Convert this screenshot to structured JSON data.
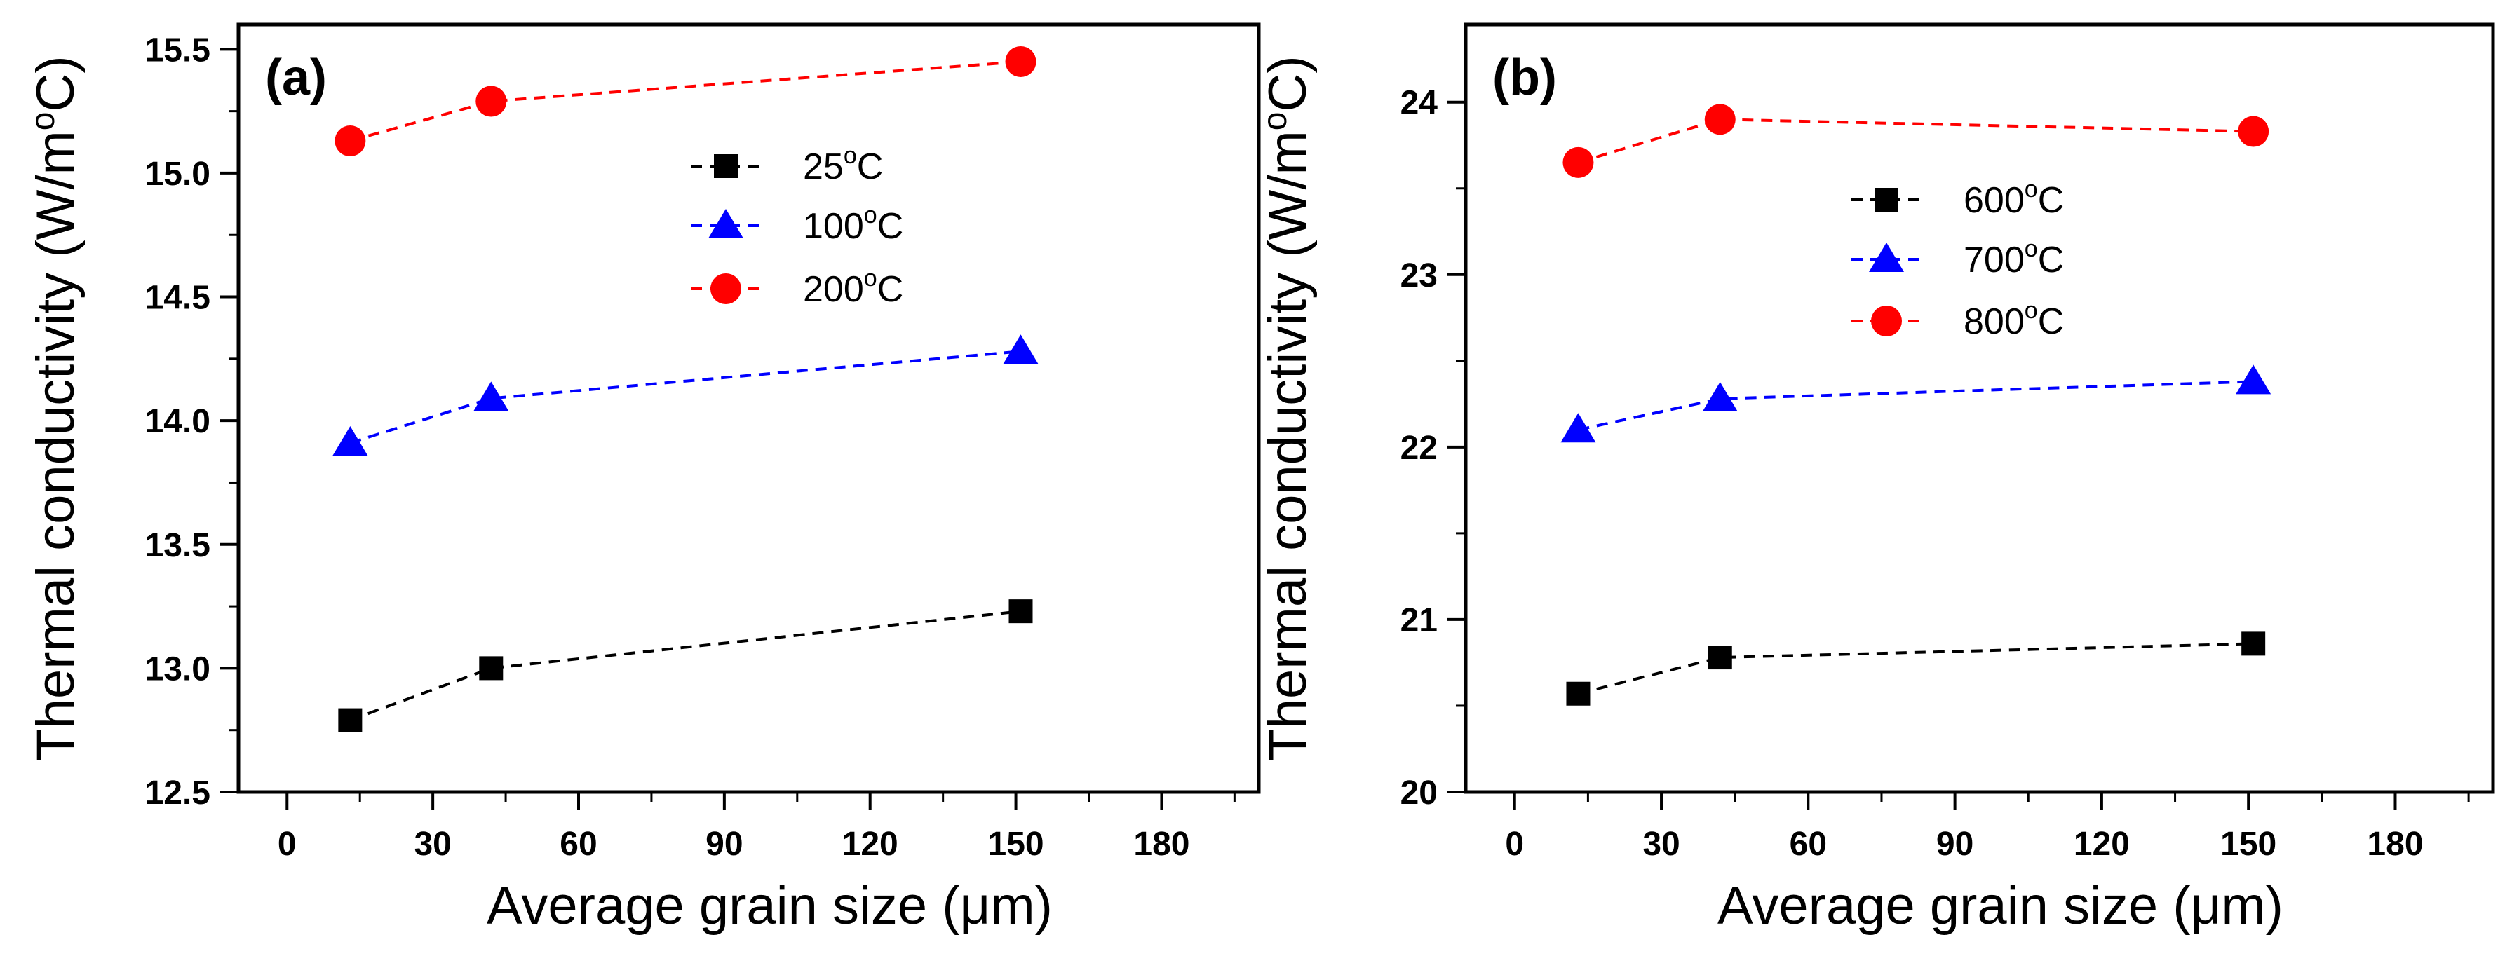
{
  "chart_data": [
    {
      "type": "line",
      "panel_label": "(a)",
      "xlabel": "Average grain size (μm)",
      "ylabel": "Thermal conductivity (W/m°C)",
      "ylabel_parts": {
        "pre": "Thermal conductivity (W/m",
        "sup": "o",
        "post": "C)"
      },
      "xlim": [
        -10,
        200
      ],
      "ylim": [
        12.5,
        15.6
      ],
      "xticks": [
        0,
        30,
        60,
        90,
        120,
        150,
        180
      ],
      "yticks": [
        12.5,
        13.0,
        13.5,
        14.0,
        14.5,
        15.0,
        15.5
      ],
      "ytick_labels": [
        "12.5",
        "13.0",
        "13.5",
        "14.0",
        "14.5",
        "15.0",
        "15.5"
      ],
      "legend_position": "upper-middle",
      "x": [
        13,
        42,
        151
      ],
      "series": [
        {
          "name": "25°C",
          "label_num": "25",
          "sup": "o",
          "unit": "C",
          "marker": "square",
          "color": "#000000",
          "values": [
            12.79,
            13.0,
            13.23
          ]
        },
        {
          "name": "100°C",
          "label_num": "100",
          "sup": "o",
          "unit": "C",
          "marker": "triangle",
          "color": "#0000ff",
          "values": [
            13.91,
            14.09,
            14.28
          ]
        },
        {
          "name": "200°C",
          "label_num": "200",
          "sup": "o",
          "unit": "C",
          "marker": "circle",
          "color": "#ff0000",
          "values": [
            15.13,
            15.29,
            15.45
          ]
        }
      ]
    },
    {
      "type": "line",
      "panel_label": "(b)",
      "xlabel": "Average grain size (μm)",
      "ylabel": "Thermal conductivity (W/m°C)",
      "ylabel_parts": {
        "pre": "Thermal conductivity (W/m",
        "sup": "o",
        "post": "C)"
      },
      "xlim": [
        -10,
        200
      ],
      "ylim": [
        20,
        24.45
      ],
      "xticks": [
        0,
        30,
        60,
        90,
        120,
        150,
        180
      ],
      "yticks": [
        20,
        21,
        22,
        23,
        24
      ],
      "ytick_labels": [
        "20",
        "21",
        "22",
        "23",
        "24"
      ],
      "legend_position": "upper-middle",
      "x": [
        13,
        42,
        151
      ],
      "series": [
        {
          "name": "600°C",
          "label_num": "600",
          "sup": "o",
          "unit": "C",
          "marker": "square",
          "color": "#000000",
          "values": [
            20.57,
            20.78,
            20.86
          ]
        },
        {
          "name": "700°C",
          "label_num": "700",
          "sup": "o",
          "unit": "C",
          "marker": "triangle",
          "color": "#0000ff",
          "values": [
            22.1,
            22.28,
            22.38
          ]
        },
        {
          "name": "800°C",
          "label_num": "800",
          "sup": "o",
          "unit": "C",
          "marker": "circle",
          "color": "#ff0000",
          "values": [
            23.65,
            23.9,
            23.83
          ]
        }
      ]
    }
  ]
}
